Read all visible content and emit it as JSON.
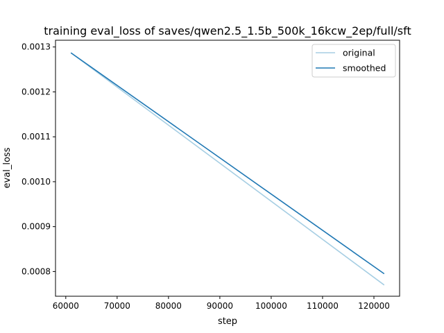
{
  "chart_data": {
    "type": "line",
    "title": "training eval_loss of saves/qwen2.5_1.5b_500k_16kcw_2ep/full/sft",
    "xlabel": "step",
    "ylabel": "eval_loss",
    "xlim": [
      58000,
      125000
    ],
    "ylim": [
      0.000745,
      0.001315
    ],
    "xticks": [
      60000,
      70000,
      80000,
      90000,
      100000,
      110000,
      120000
    ],
    "xtick_labels": [
      "60000",
      "70000",
      "80000",
      "90000",
      "100000",
      "110000",
      "120000"
    ],
    "yticks": [
      0.0008,
      0.0009,
      0.001,
      0.0011,
      0.0012,
      0.0013
    ],
    "ytick_labels": [
      "0.0008",
      "0.0009",
      "0.0010",
      "0.0011",
      "0.0012",
      "0.0013"
    ],
    "grid": false,
    "legend_position": "top-right",
    "series": [
      {
        "name": "original",
        "color": "#a6cee3",
        "x": [
          61000,
          122000
        ],
        "y": [
          0.001287,
          0.00077
        ]
      },
      {
        "name": "smoothed",
        "color": "#1f78b4",
        "x": [
          61000,
          122000
        ],
        "y": [
          0.001287,
          0.000795
        ]
      }
    ]
  }
}
